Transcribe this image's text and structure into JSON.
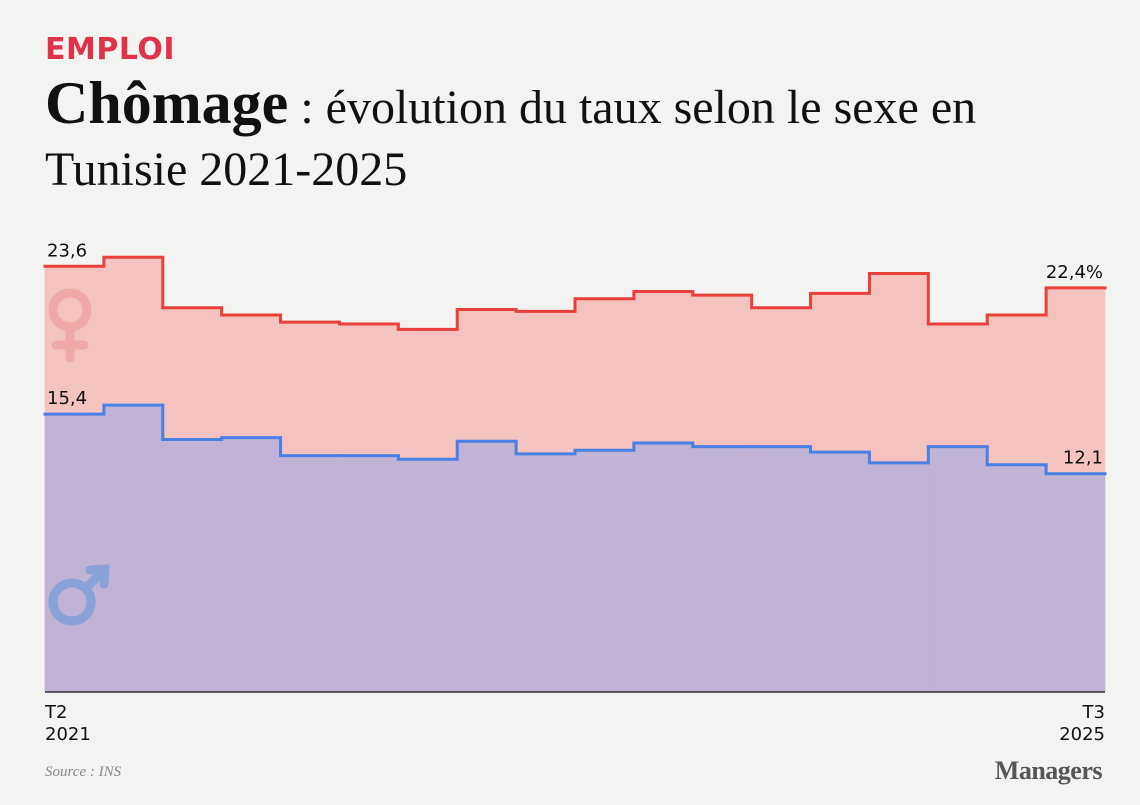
{
  "kicker": "EMPLOI",
  "title_bold": "Chômage",
  "title_rest": " : évolution du taux selon le sexe en Tunisie 2021-2025",
  "source": "Source : INS",
  "brand": "Managers",
  "chart_data": {
    "type": "step",
    "categories": [
      "T2\n2021",
      null,
      null,
      null,
      null,
      null,
      null,
      null,
      null,
      null,
      null,
      null,
      null,
      null,
      null,
      null,
      null,
      "T3\n2025"
    ],
    "series": [
      {
        "name": "Femmes",
        "color": "#e8413b",
        "fill": "#f4c2bf",
        "values": [
          23.6,
          24.1,
          21.3,
          20.9,
          20.5,
          20.4,
          20.1,
          21.2,
          21.1,
          21.8,
          22.2,
          22.0,
          21.3,
          22.1,
          23.2,
          20.4,
          20.9,
          22.4
        ],
        "value_labels": [
          "23,6",
          null,
          null,
          null,
          null,
          null,
          null,
          null,
          null,
          null,
          null,
          null,
          null,
          null,
          null,
          null,
          null,
          "22,4%"
        ]
      },
      {
        "name": "Hommes",
        "color": "#4a7fe3",
        "fill": "#c0b3d5",
        "values": [
          15.4,
          15.9,
          14.0,
          14.1,
          13.1,
          13.1,
          12.9,
          13.9,
          13.2,
          13.4,
          13.8,
          13.6,
          13.6,
          13.3,
          12.7,
          13.6,
          12.6,
          12.1
        ],
        "value_labels": [
          "15,4",
          null,
          null,
          null,
          null,
          null,
          null,
          null,
          null,
          null,
          null,
          null,
          null,
          null,
          null,
          null,
          null,
          "12,1"
        ]
      }
    ],
    "ylim": [
      0,
      25
    ]
  }
}
